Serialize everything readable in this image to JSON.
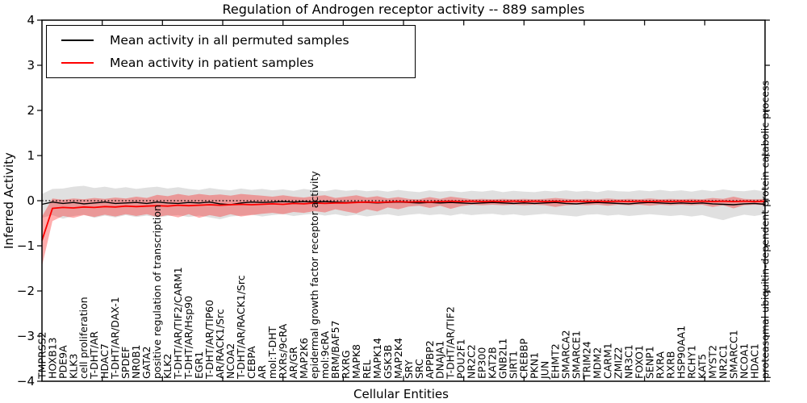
{
  "chart_data": {
    "type": "line",
    "title": "Regulation of Androgen receptor activity -- 889 samples",
    "xlabel": "Cellular Entities",
    "ylabel": "Inferred Activity",
    "ylim": [
      -4,
      4
    ],
    "yticks": [
      4,
      3,
      2,
      1,
      0,
      -1,
      -2,
      -3,
      -4
    ],
    "grid": false,
    "legend_position": "upper left",
    "zero_line": {
      "value": 0,
      "style": "dotted",
      "color": "#000000"
    },
    "categories": [
      "TMPRSS2",
      "HOXB13",
      "PDE9A",
      "KLK3",
      "cell proliferation",
      "T-DHT/AR",
      "HDAC7",
      "T-DHT/AR/DAX-1",
      "SPDEF",
      "NR0B1",
      "GATA2",
      "positive regulation of transcription",
      "KLK2",
      "T-DHT/AR/TIF2/CARM1",
      "T-DHT/AR/Hsp90",
      "EGR1",
      "T-DHT/AR/TIP60",
      "AR/RACK1/Src",
      "NCOA2",
      "T-DHT/AR/RACK1/Src",
      "CEBPA",
      "AR",
      "mol:T-DHT",
      "RXRs/9cRA",
      "AR/GR",
      "MAP2K6",
      "epidermal growth factor receptor activity",
      "mol:9cRA",
      "BRM/BAF57",
      "RXRG",
      "MAPK8",
      "REL",
      "MAPK14",
      "GSK3B",
      "MAP2K4",
      "SRY",
      "SRC",
      "APPBP2",
      "DNAJA1",
      "T-DHT/AR/TIF2",
      "POU2F1",
      "NR2C2",
      "EP300",
      "KAT2B",
      "GNB2L1",
      "SIRT1",
      "CREBBP",
      "PKN1",
      "JUN",
      "EHMT2",
      "SMARCA2",
      "SMARCE1",
      "TRIM24",
      "MDM2",
      "CARM1",
      "ZMIZ2",
      "NR3C1",
      "FOXO1",
      "SENP1",
      "RXRA",
      "RXRB",
      "HSP90AA1",
      "RCHY1",
      "KAT5",
      "MYST2",
      "NR2C1",
      "SMARCC1",
      "NCOA1",
      "HDAC1",
      "proteasomal ubiquitin-dependent protein catabolic process"
    ],
    "series": [
      {
        "name": "Mean activity in all permuted samples",
        "color": "#000000",
        "line_width": 1.4,
        "band_color": "#999999",
        "band_opacity": 0.3,
        "values": [
          -0.08,
          -0.03,
          -0.06,
          -0.04,
          -0.07,
          -0.05,
          -0.03,
          -0.06,
          -0.05,
          -0.04,
          -0.06,
          -0.03,
          -0.05,
          -0.06,
          -0.04,
          -0.05,
          -0.03,
          -0.07,
          -0.09,
          -0.05,
          -0.03,
          -0.04,
          -0.03,
          -0.02,
          -0.03,
          -0.02,
          -0.03,
          -0.02,
          -0.03,
          -0.04,
          -0.03,
          -0.04,
          -0.05,
          -0.04,
          -0.03,
          -0.04,
          -0.05,
          -0.04,
          -0.05,
          -0.04,
          -0.05,
          -0.06,
          -0.05,
          -0.04,
          -0.05,
          -0.06,
          -0.05,
          -0.06,
          -0.05,
          -0.04,
          -0.06,
          -0.07,
          -0.05,
          -0.04,
          -0.05,
          -0.06,
          -0.07,
          -0.05,
          -0.04,
          -0.05,
          -0.06,
          -0.05,
          -0.06,
          -0.05,
          -0.07,
          -0.08,
          -0.09,
          -0.07,
          -0.06,
          -0.08
        ],
        "band_upper": [
          0.15,
          0.26,
          0.27,
          0.31,
          0.33,
          0.28,
          0.31,
          0.27,
          0.3,
          0.26,
          0.29,
          0.31,
          0.27,
          0.3,
          0.26,
          0.24,
          0.28,
          0.25,
          0.23,
          0.27,
          0.24,
          0.26,
          0.23,
          0.25,
          0.22,
          0.26,
          0.23,
          0.21,
          0.25,
          0.22,
          0.24,
          0.21,
          0.23,
          0.2,
          0.24,
          0.21,
          0.19,
          0.23,
          0.2,
          0.22,
          0.19,
          0.22,
          0.2,
          0.23,
          0.19,
          0.22,
          0.2,
          0.19,
          0.22,
          0.2,
          0.23,
          0.2,
          0.22,
          0.19,
          0.23,
          0.21,
          0.2,
          0.23,
          0.21,
          0.24,
          0.21,
          0.23,
          0.2,
          0.24,
          0.21,
          0.25,
          0.22,
          0.21,
          0.24,
          0.2
        ],
        "band_lower": [
          -0.38,
          -0.32,
          -0.4,
          -0.34,
          -0.31,
          -0.38,
          -0.33,
          -0.37,
          -0.32,
          -0.36,
          -0.33,
          -0.37,
          -0.34,
          -0.32,
          -0.36,
          -0.33,
          -0.37,
          -0.41,
          -0.35,
          -0.33,
          -0.31,
          -0.35,
          -0.32,
          -0.3,
          -0.34,
          -0.31,
          -0.29,
          -0.33,
          -0.3,
          -0.34,
          -0.31,
          -0.35,
          -0.32,
          -0.3,
          -0.34,
          -0.31,
          -0.29,
          -0.32,
          -0.3,
          -0.33,
          -0.29,
          -0.32,
          -0.3,
          -0.29,
          -0.32,
          -0.3,
          -0.33,
          -0.31,
          -0.29,
          -0.31,
          -0.33,
          -0.35,
          -0.31,
          -0.3,
          -0.33,
          -0.31,
          -0.34,
          -0.32,
          -0.3,
          -0.32,
          -0.34,
          -0.32,
          -0.35,
          -0.32,
          -0.38,
          -0.43,
          -0.36,
          -0.31,
          -0.34,
          -0.3
        ]
      },
      {
        "name": "Mean activity in patient samples",
        "color": "#ff0000",
        "line_width": 1.8,
        "band_color": "#ff0000",
        "band_opacity": 0.32,
        "values": [
          -0.88,
          -0.17,
          -0.15,
          -0.16,
          -0.14,
          -0.15,
          -0.13,
          -0.14,
          -0.12,
          -0.13,
          -0.12,
          -0.11,
          -0.12,
          -0.1,
          -0.11,
          -0.1,
          -0.09,
          -0.1,
          -0.09,
          -0.08,
          -0.09,
          -0.08,
          -0.07,
          -0.08,
          -0.06,
          -0.07,
          -0.05,
          -0.06,
          -0.05,
          -0.05,
          -0.04,
          -0.03,
          -0.04,
          -0.03,
          -0.02,
          -0.03,
          -0.02,
          -0.03,
          -0.02,
          -0.01,
          -0.02,
          -0.01,
          -0.02,
          -0.01,
          -0.02,
          -0.01,
          -0.02,
          -0.01,
          -0.02,
          -0.01,
          -0.02,
          -0.01,
          -0.02,
          -0.01,
          -0.02,
          -0.01,
          -0.02,
          -0.01,
          -0.02,
          -0.01,
          -0.02,
          -0.01,
          -0.02,
          -0.01,
          -0.02,
          -0.01,
          -0.02,
          -0.01,
          -0.02,
          -0.01
        ],
        "band_upper": [
          -0.35,
          0.05,
          0.02,
          0.05,
          0.03,
          0.06,
          0.04,
          0.07,
          0.05,
          0.09,
          0.06,
          0.13,
          0.1,
          0.15,
          0.11,
          0.15,
          0.12,
          0.14,
          0.11,
          0.15,
          0.13,
          0.11,
          0.09,
          0.12,
          0.09,
          0.07,
          0.1,
          0.12,
          0.06,
          0.09,
          0.12,
          0.07,
          0.1,
          0.05,
          0.08,
          0.04,
          0.03,
          0.08,
          0.04,
          0.09,
          0.06,
          0.03,
          0.04,
          0.03,
          0.04,
          0.03,
          0.04,
          0.03,
          0.04,
          0.06,
          0.04,
          0.03,
          0.04,
          0.03,
          0.05,
          0.03,
          0.04,
          0.03,
          0.05,
          0.03,
          0.04,
          0.03,
          0.04,
          0.03,
          0.06,
          0.04,
          0.09,
          0.04,
          0.03,
          0.04
        ],
        "band_lower": [
          -1.45,
          -0.45,
          -0.34,
          -0.38,
          -0.32,
          -0.36,
          -0.31,
          -0.35,
          -0.3,
          -0.34,
          -0.3,
          -0.36,
          -0.32,
          -0.37,
          -0.3,
          -0.38,
          -0.32,
          -0.36,
          -0.3,
          -0.35,
          -0.32,
          -0.29,
          -0.27,
          -0.3,
          -0.25,
          -0.27,
          -0.23,
          -0.26,
          -0.19,
          -0.24,
          -0.28,
          -0.19,
          -0.24,
          -0.15,
          -0.19,
          -0.13,
          -0.11,
          -0.16,
          -0.11,
          -0.18,
          -0.12,
          -0.09,
          -0.1,
          -0.09,
          -0.1,
          -0.09,
          -0.1,
          -0.09,
          -0.1,
          -0.14,
          -0.1,
          -0.09,
          -0.1,
          -0.09,
          -0.11,
          -0.09,
          -0.1,
          -0.09,
          -0.11,
          -0.09,
          -0.1,
          -0.09,
          -0.1,
          -0.09,
          -0.14,
          -0.1,
          -0.17,
          -0.1,
          -0.09,
          -0.1
        ]
      }
    ]
  }
}
